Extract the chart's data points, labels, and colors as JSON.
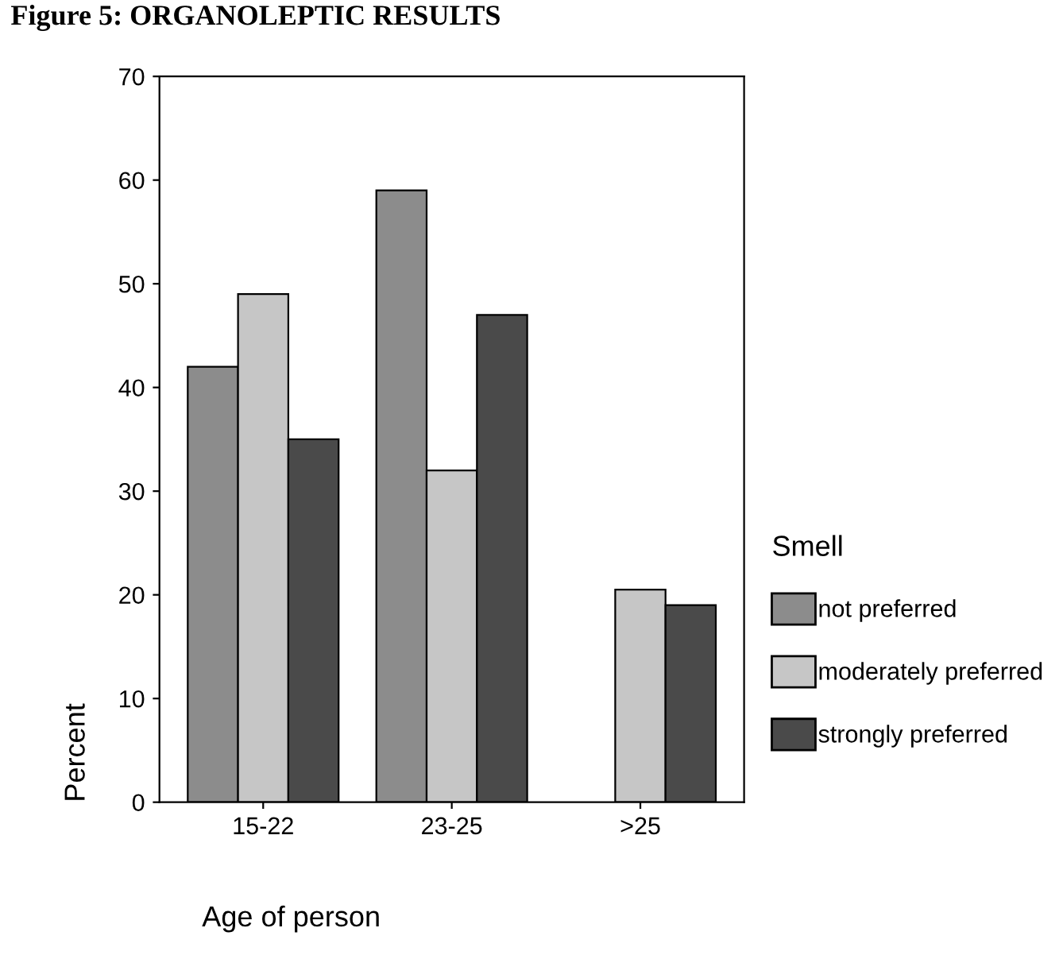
{
  "chart_data": {
    "type": "bar",
    "title": "Figure 5: ORGANOLEPTIC RESULTS",
    "xlabel": "Age of person",
    "ylabel": "Percent",
    "legend_title": "Smell",
    "categories": [
      "15-22",
      "23-25",
      ">25"
    ],
    "series": [
      {
        "name": "not preferred",
        "color": "#8c8c8c",
        "values": [
          42,
          59,
          null
        ]
      },
      {
        "name": "moderately preferred",
        "color": "#c6c6c6",
        "values": [
          49,
          32,
          20.5
        ]
      },
      {
        "name": "strongly preferred",
        "color": "#4a4a4a",
        "values": [
          35,
          47,
          19
        ]
      }
    ],
    "ylim": [
      0,
      70
    ],
    "yticks": [
      0,
      10,
      20,
      30,
      40,
      50,
      60,
      70
    ],
    "grid": false,
    "legend": "right"
  }
}
